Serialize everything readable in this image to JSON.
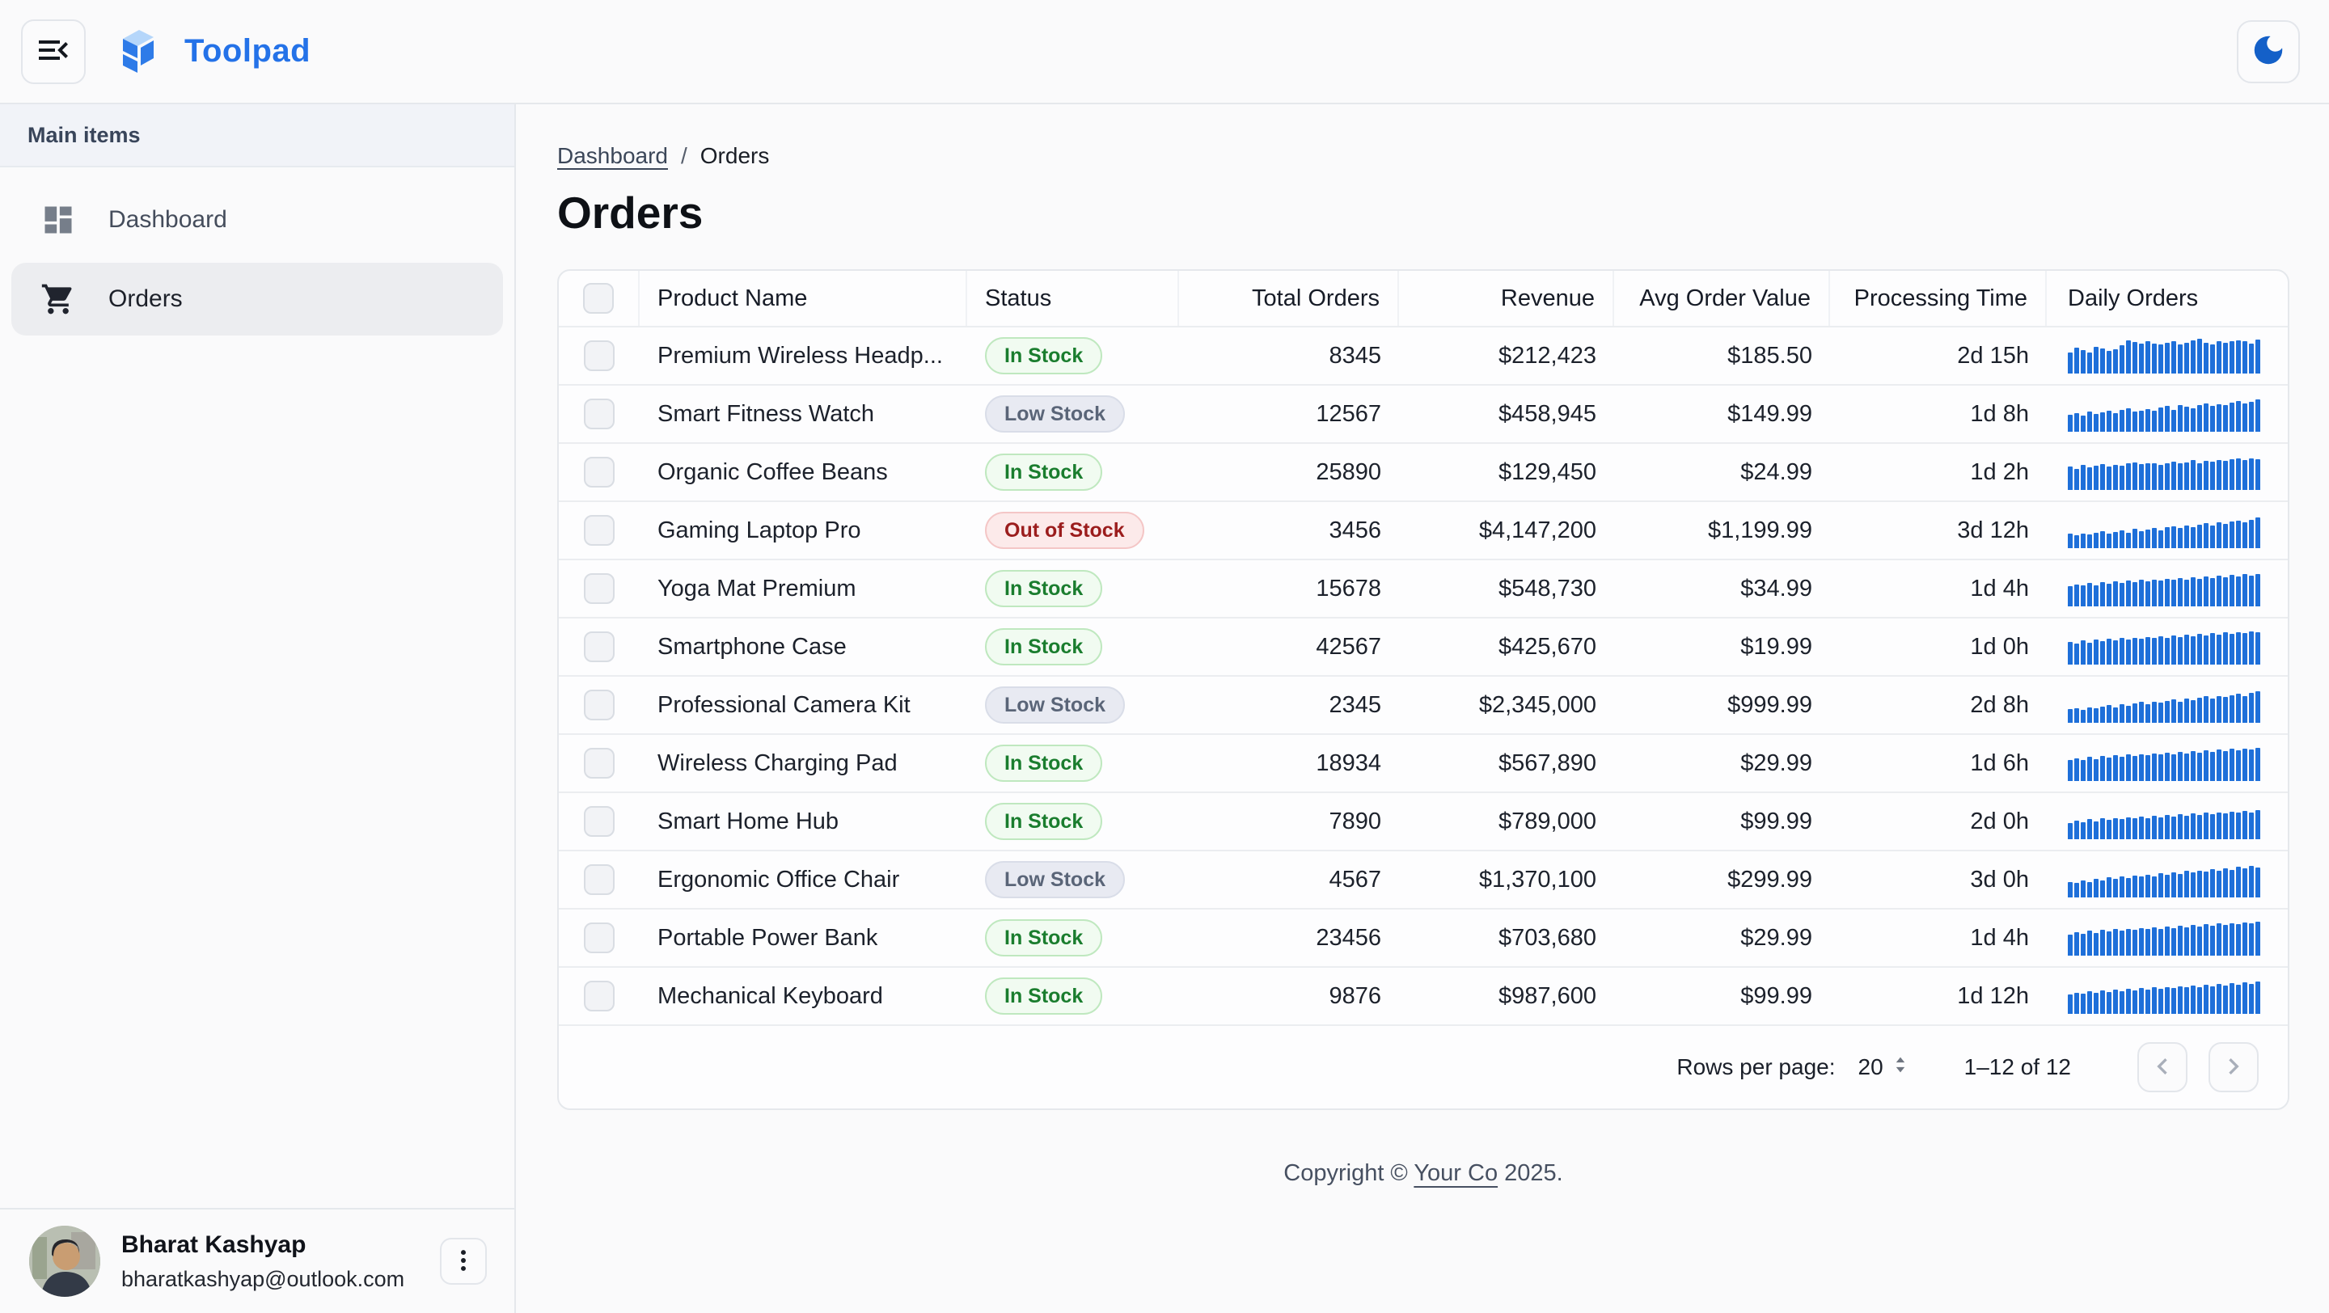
{
  "app": {
    "name": "Toolpad"
  },
  "sidebar": {
    "section_label": "Main items",
    "items": [
      {
        "label": "Dashboard",
        "icon": "dashboard-icon",
        "selected": false
      },
      {
        "label": "Orders",
        "icon": "cart-icon",
        "selected": true
      }
    ],
    "account": {
      "name": "Bharat Kashyap",
      "email": "bharatkashyap@outlook.com"
    }
  },
  "breadcrumb": {
    "link": "Dashboard",
    "separator": "/",
    "current": "Orders"
  },
  "page": {
    "title": "Orders"
  },
  "table": {
    "columns": [
      {
        "label": "Product Name",
        "align": "left"
      },
      {
        "label": "Status",
        "align": "left"
      },
      {
        "label": "Total Orders",
        "align": "right"
      },
      {
        "label": "Revenue",
        "align": "right"
      },
      {
        "label": "Avg Order Value",
        "align": "right"
      },
      {
        "label": "Processing Time",
        "align": "right"
      },
      {
        "label": "Daily Orders",
        "align": "left"
      }
    ],
    "rows": [
      {
        "product": "Premium Wireless Headp...",
        "status": {
          "label": "In Stock",
          "variant": "in"
        },
        "total_orders": "8345",
        "revenue": "$212,423",
        "avg_order_value": "$185.50",
        "processing_time": "2d 15h",
        "daily_orders": [
          60,
          72,
          66,
          58,
          76,
          70,
          64,
          68,
          80,
          94,
          88,
          84,
          90,
          84,
          82,
          86,
          90,
          82,
          86,
          94,
          98,
          86,
          82,
          90,
          86,
          90,
          94,
          90,
          84,
          96
        ]
      },
      {
        "product": "Smart Fitness Watch",
        "status": {
          "label": "Low Stock",
          "variant": "low"
        },
        "total_orders": "12567",
        "revenue": "$458,945",
        "avg_order_value": "$149.99",
        "processing_time": "1d 8h",
        "daily_orders": [
          48,
          52,
          46,
          56,
          50,
          54,
          58,
          52,
          62,
          66,
          56,
          60,
          64,
          58,
          68,
          72,
          62,
          74,
          70,
          66,
          76,
          80,
          72,
          78,
          74,
          82,
          86,
          80,
          84,
          92
        ]
      },
      {
        "product": "Organic Coffee Beans",
        "status": {
          "label": "In Stock",
          "variant": "in"
        },
        "total_orders": "25890",
        "revenue": "$129,450",
        "avg_order_value": "$24.99",
        "processing_time": "1d 2h",
        "daily_orders": [
          66,
          60,
          70,
          64,
          68,
          72,
          66,
          70,
          68,
          74,
          78,
          72,
          76,
          74,
          70,
          76,
          80,
          74,
          78,
          84,
          76,
          82,
          80,
          84,
          82,
          86,
          88,
          84,
          88,
          86
        ]
      },
      {
        "product": "Gaming Laptop Pro",
        "status": {
          "label": "Out of Stock",
          "variant": "out"
        },
        "total_orders": "3456",
        "revenue": "$4,147,200",
        "avg_order_value": "$1,199.99",
        "processing_time": "3d 12h",
        "daily_orders": [
          40,
          36,
          42,
          38,
          44,
          48,
          42,
          46,
          50,
          44,
          54,
          48,
          52,
          56,
          50,
          58,
          62,
          56,
          64,
          60,
          66,
          70,
          64,
          72,
          68,
          74,
          78,
          72,
          80,
          86
        ]
      },
      {
        "product": "Yoga Mat Premium",
        "status": {
          "label": "In Stock",
          "variant": "in"
        },
        "total_orders": "15678",
        "revenue": "$548,730",
        "avg_order_value": "$34.99",
        "processing_time": "1d 4h",
        "daily_orders": [
          56,
          62,
          58,
          66,
          60,
          68,
          64,
          70,
          66,
          72,
          68,
          74,
          70,
          76,
          72,
          78,
          74,
          80,
          76,
          82,
          78,
          84,
          80,
          86,
          82,
          88,
          84,
          90,
          86,
          92
        ]
      },
      {
        "product": "Smartphone Case",
        "status": {
          "label": "In Stock",
          "variant": "in"
        },
        "total_orders": "42567",
        "revenue": "$425,670",
        "avg_order_value": "$19.99",
        "processing_time": "1d 0h",
        "daily_orders": [
          64,
          58,
          68,
          62,
          70,
          66,
          72,
          68,
          74,
          70,
          76,
          72,
          78,
          74,
          80,
          76,
          82,
          78,
          84,
          80,
          86,
          82,
          88,
          84,
          90,
          86,
          92,
          88,
          94,
          90
        ]
      },
      {
        "product": "Professional Camera Kit",
        "status": {
          "label": "Low Stock",
          "variant": "low"
        },
        "total_orders": "2345",
        "revenue": "$2,345,000",
        "avg_order_value": "$999.99",
        "processing_time": "2d 8h",
        "daily_orders": [
          38,
          42,
          36,
          44,
          40,
          46,
          50,
          44,
          52,
          48,
          54,
          58,
          52,
          60,
          56,
          62,
          66,
          60,
          68,
          64,
          70,
          74,
          68,
          76,
          72,
          78,
          82,
          76,
          84,
          88
        ]
      },
      {
        "product": "Wireless Charging Pad",
        "status": {
          "label": "In Stock",
          "variant": "in"
        },
        "total_orders": "18934",
        "revenue": "$567,890",
        "avg_order_value": "$29.99",
        "processing_time": "1d 6h",
        "daily_orders": [
          58,
          64,
          60,
          68,
          62,
          70,
          66,
          72,
          68,
          74,
          70,
          76,
          72,
          78,
          74,
          80,
          76,
          82,
          78,
          84,
          80,
          86,
          82,
          88,
          84,
          90,
          86,
          92,
          88,
          94
        ]
      },
      {
        "product": "Smart Home Hub",
        "status": {
          "label": "In Stock",
          "variant": "in"
        },
        "total_orders": "7890",
        "revenue": "$789,000",
        "avg_order_value": "$99.99",
        "processing_time": "2d 0h",
        "daily_orders": [
          46,
          52,
          48,
          56,
          50,
          58,
          54,
          60,
          56,
          62,
          58,
          64,
          60,
          66,
          62,
          68,
          64,
          70,
          66,
          72,
          68,
          74,
          70,
          76,
          72,
          78,
          74,
          80,
          76,
          82
        ]
      },
      {
        "product": "Ergonomic Office Chair",
        "status": {
          "label": "Low Stock",
          "variant": "low"
        },
        "total_orders": "4567",
        "revenue": "$1,370,100",
        "avg_order_value": "$299.99",
        "processing_time": "3d 0h",
        "daily_orders": [
          44,
          40,
          48,
          44,
          52,
          48,
          56,
          52,
          58,
          54,
          62,
          58,
          64,
          60,
          68,
          64,
          70,
          66,
          74,
          70,
          76,
          72,
          80,
          76,
          82,
          78,
          86,
          82,
          88,
          84
        ]
      },
      {
        "product": "Portable Power Bank",
        "status": {
          "label": "In Stock",
          "variant": "in"
        },
        "total_orders": "23456",
        "revenue": "$703,680",
        "avg_order_value": "$29.99",
        "processing_time": "1d 4h",
        "daily_orders": [
          60,
          66,
          62,
          70,
          64,
          72,
          68,
          74,
          70,
          76,
          72,
          78,
          74,
          80,
          76,
          82,
          78,
          84,
          80,
          86,
          82,
          88,
          84,
          90,
          86,
          92,
          88,
          94,
          90,
          96
        ]
      },
      {
        "product": "Mechanical Keyboard",
        "status": {
          "label": "In Stock",
          "variant": "in"
        },
        "total_orders": "9876",
        "revenue": "$987,600",
        "avg_order_value": "$99.99",
        "processing_time": "1d 12h",
        "daily_orders": [
          54,
          60,
          56,
          64,
          58,
          66,
          62,
          68,
          64,
          70,
          66,
          72,
          68,
          74,
          70,
          76,
          72,
          78,
          74,
          80,
          76,
          82,
          78,
          84,
          80,
          86,
          82,
          88,
          84,
          90
        ]
      }
    ],
    "pagination": {
      "rows_per_page_label": "Rows per page:",
      "rows_per_page": "20",
      "range": "1–12 of 12"
    }
  },
  "footer": {
    "prefix": "Copyright © ",
    "company": "Your Co",
    "suffix": " 2025."
  },
  "colors": {
    "accent": "#2472E8",
    "sparkline": "#1E6FD9",
    "status_in_stock": "#1A7D2E",
    "status_low_stock": "#5A6578",
    "status_out_of_stock": "#9B1D1D"
  }
}
